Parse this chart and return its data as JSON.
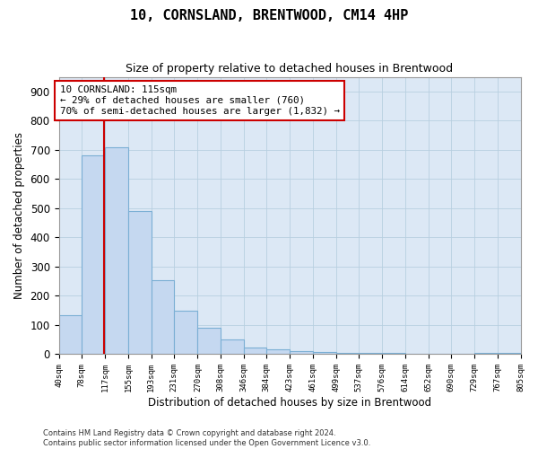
{
  "title": "10, CORNSLAND, BRENTWOOD, CM14 4HP",
  "subtitle": "Size of property relative to detached houses in Brentwood",
  "xlabel": "Distribution of detached houses by size in Brentwood",
  "ylabel": "Number of detached properties",
  "bar_values": [
    135,
    680,
    710,
    490,
    255,
    150,
    90,
    52,
    23,
    18,
    10,
    8,
    5,
    4,
    3,
    2,
    2,
    1,
    6
  ],
  "bin_edges": [
    40,
    78,
    117,
    155,
    193,
    231,
    270,
    308,
    346,
    384,
    423,
    461,
    499,
    537,
    576,
    614,
    652,
    690,
    729,
    805
  ],
  "x_tick_labels": [
    "40sqm",
    "78sqm",
    "117sqm",
    "155sqm",
    "193sqm",
    "231sqm",
    "270sqm",
    "308sqm",
    "346sqm",
    "384sqm",
    "423sqm",
    "461sqm",
    "499sqm",
    "537sqm",
    "576sqm",
    "614sqm",
    "652sqm",
    "690sqm",
    "729sqm",
    "767sqm",
    "805sqm"
  ],
  "bar_color": "#c5d8f0",
  "bar_edge_color": "#7bafd4",
  "property_line_x": 115,
  "property_line_color": "#cc0000",
  "annotation_line1": "10 CORNSLAND: 115sqm",
  "annotation_line2": "← 29% of detached houses are smaller (760)",
  "annotation_line3": "70% of semi-detached houses are larger (1,832) →",
  "annotation_box_color": "#cc0000",
  "ylim_max": 950,
  "yticks": [
    0,
    100,
    200,
    300,
    400,
    500,
    600,
    700,
    800,
    900
  ],
  "bg_color": "#ffffff",
  "ax_bg_color": "#dce8f5",
  "grid_color": "#b8cfe0",
  "footnote_line1": "Contains HM Land Registry data © Crown copyright and database right 2024.",
  "footnote_line2": "Contains public sector information licensed under the Open Government Licence v3.0."
}
